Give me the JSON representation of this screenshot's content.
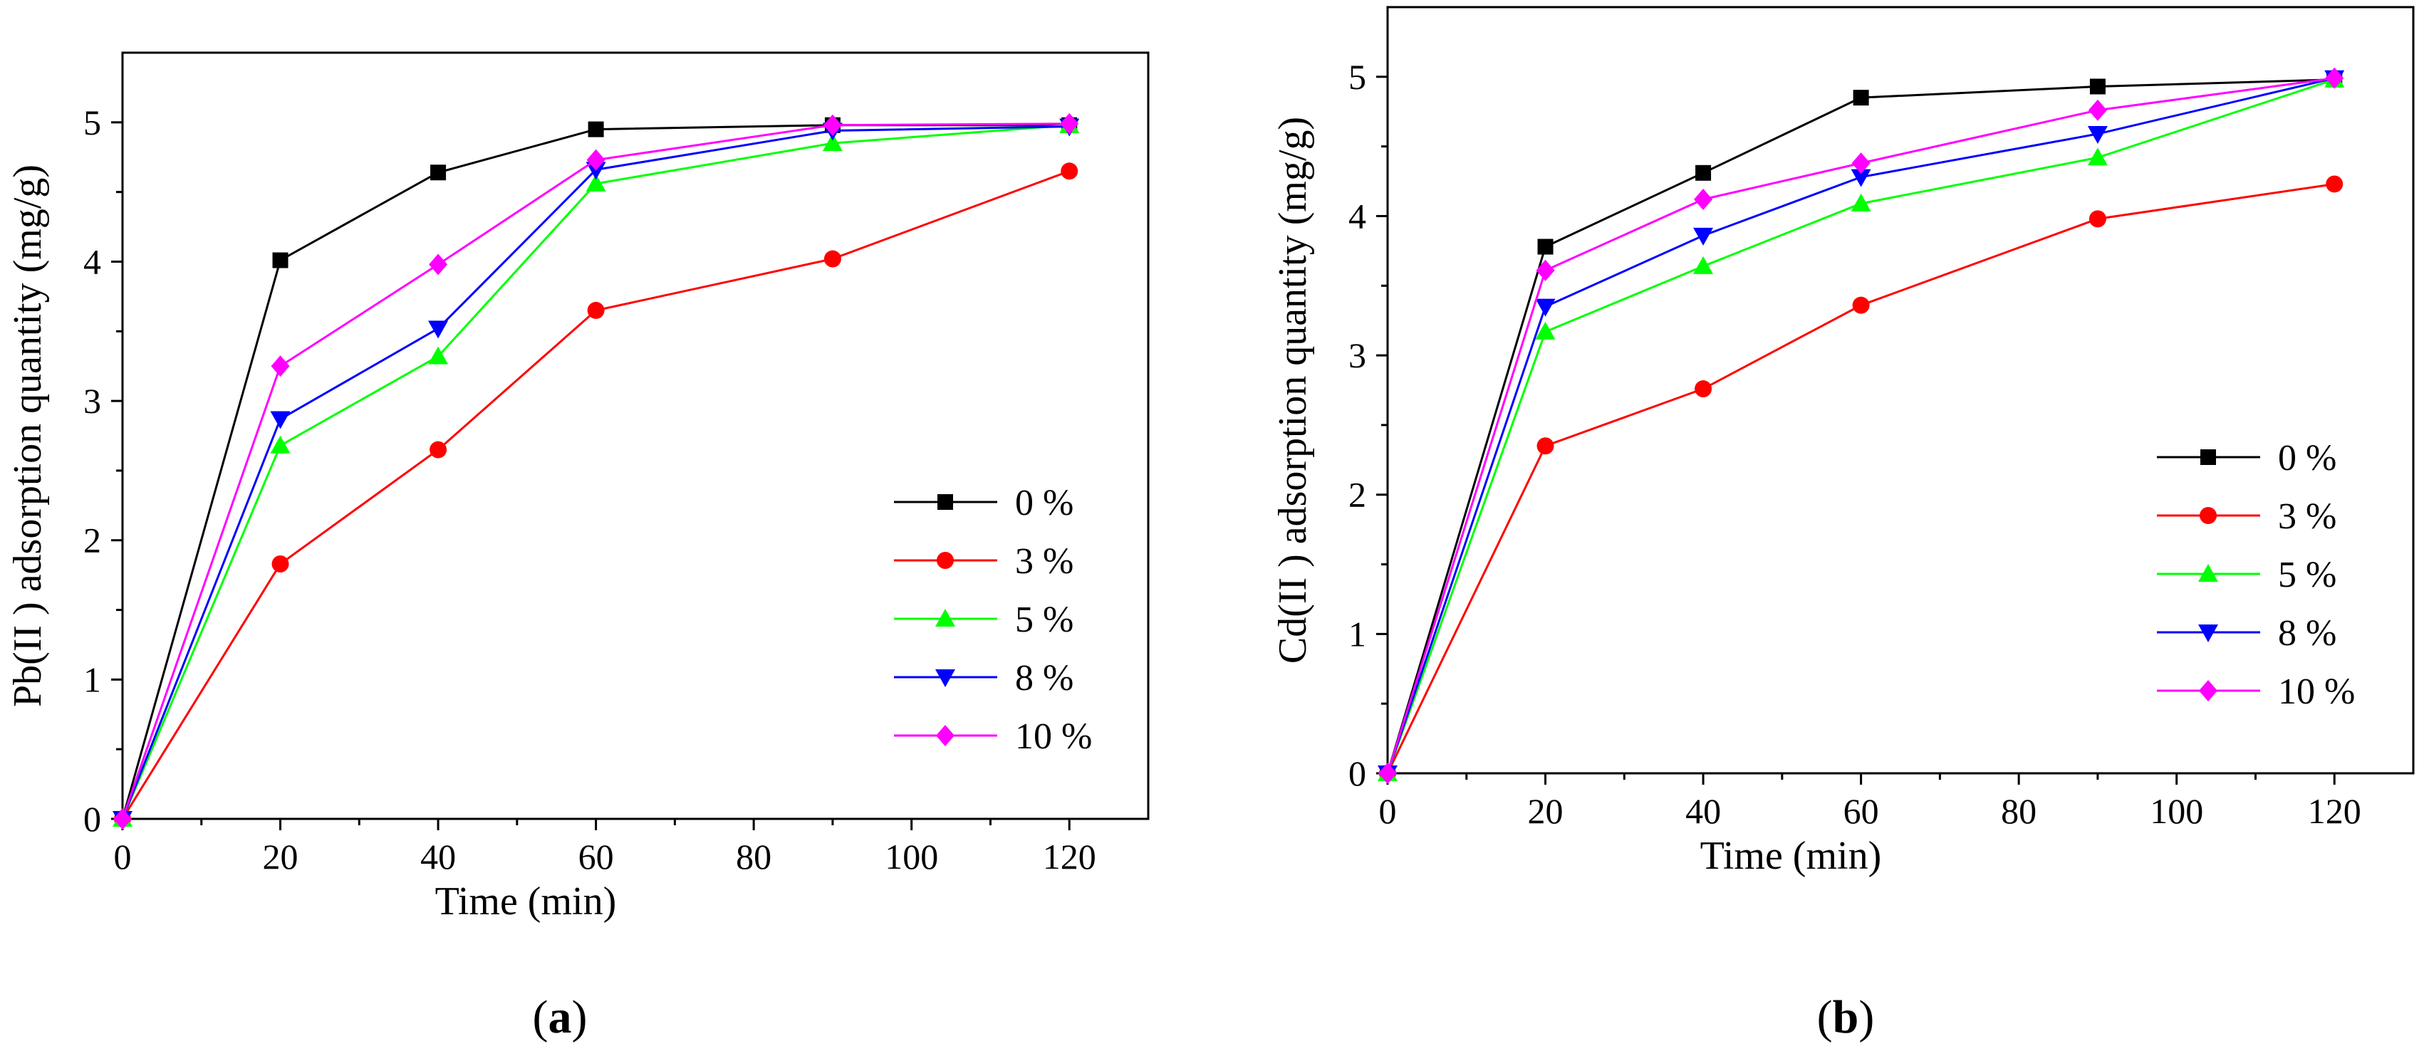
{
  "chart_data": [
    {
      "panel_label": [
        "(",
        "a",
        ")"
      ],
      "type": "line",
      "xlabel": "Time (min)",
      "ylabel": "Pb(II ) adsorption quantity (mg/g)",
      "xlim": [
        0,
        130
      ],
      "ylim": [
        0,
        5.5
      ],
      "xticks": [
        0,
        20,
        40,
        60,
        80,
        100,
        120
      ],
      "yticks": [
        0,
        1,
        2,
        3,
        4,
        5
      ],
      "legend_position": "lower-right",
      "grid": false,
      "x": [
        0,
        20,
        40,
        60,
        90,
        120
      ],
      "series": [
        {
          "name": "0 %",
          "values": [
            0,
            4.01,
            4.64,
            4.95,
            4.98,
            4.98
          ],
          "color": "#000000",
          "marker": "square"
        },
        {
          "name": "3 %",
          "values": [
            0,
            1.83,
            2.65,
            3.65,
            4.02,
            4.65
          ],
          "color": "#ff0000",
          "marker": "circle"
        },
        {
          "name": "5 %",
          "values": [
            0,
            2.68,
            3.32,
            4.56,
            4.85,
            4.98
          ],
          "color": "#00ff00",
          "marker": "triangle-up"
        },
        {
          "name": "8 %",
          "values": [
            0,
            2.87,
            3.52,
            4.66,
            4.94,
            4.97
          ],
          "color": "#0000ff",
          "marker": "triangle-down"
        },
        {
          "name": "10 %",
          "values": [
            0,
            3.25,
            3.98,
            4.73,
            4.98,
            4.99
          ],
          "color": "#ff00ff",
          "marker": "diamond"
        }
      ]
    },
    {
      "panel_label": [
        "(",
        "b",
        ")"
      ],
      "type": "line",
      "xlabel": "Time (min)",
      "ylabel": "Cd(II ) adsorption quantity (mg/g)",
      "xlim": [
        0,
        130
      ],
      "ylim": [
        0,
        5.5
      ],
      "xticks": [
        0,
        20,
        40,
        60,
        80,
        100,
        120
      ],
      "yticks": [
        0,
        1,
        2,
        3,
        4,
        5
      ],
      "legend_position": "center-right",
      "grid": false,
      "x": [
        0,
        20,
        40,
        60,
        90,
        120
      ],
      "series": [
        {
          "name": "0 %",
          "values": [
            0,
            3.78,
            4.31,
            4.85,
            4.93,
            4.98
          ],
          "color": "#000000",
          "marker": "square"
        },
        {
          "name": "3 %",
          "values": [
            0,
            2.35,
            2.76,
            3.36,
            3.98,
            4.23
          ],
          "color": "#ff0000",
          "marker": "circle"
        },
        {
          "name": "5 %",
          "values": [
            0,
            3.17,
            3.64,
            4.09,
            4.42,
            4.98
          ],
          "color": "#00ff00",
          "marker": "triangle-up"
        },
        {
          "name": "8 %",
          "values": [
            0,
            3.35,
            3.86,
            4.28,
            4.59,
            4.99
          ],
          "color": "#0000ff",
          "marker": "triangle-down"
        },
        {
          "name": "10 %",
          "values": [
            0,
            3.61,
            4.12,
            4.38,
            4.76,
            4.99
          ],
          "color": "#ff00ff",
          "marker": "diamond"
        }
      ]
    }
  ]
}
